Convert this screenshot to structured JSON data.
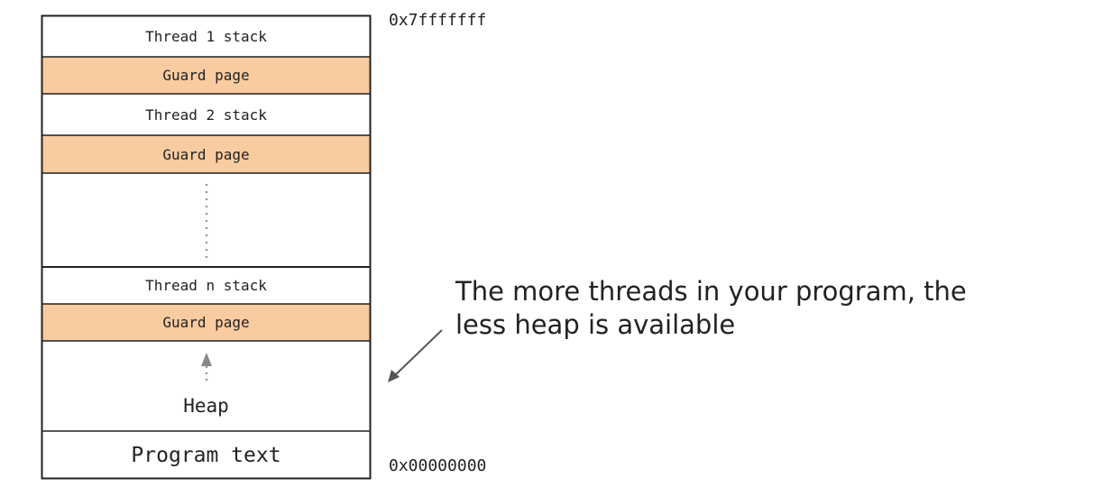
{
  "memory_layout": {
    "top_address": "0x7fffffff",
    "bottom_address": "0x00000000",
    "regions": {
      "thread1_stack": "Thread 1 stack",
      "guard1": "Guard page",
      "thread2_stack": "Thread 2 stack",
      "guard2": "Guard page",
      "threadn_stack": "Thread n stack",
      "guard3": "Guard page",
      "heap": "Heap",
      "program_text": "Program text"
    }
  },
  "annotation": {
    "line1": "The more threads in your program, the",
    "line2": "less heap is available"
  },
  "colors": {
    "guard_fill": "#f9cba0",
    "border": "#222222"
  }
}
